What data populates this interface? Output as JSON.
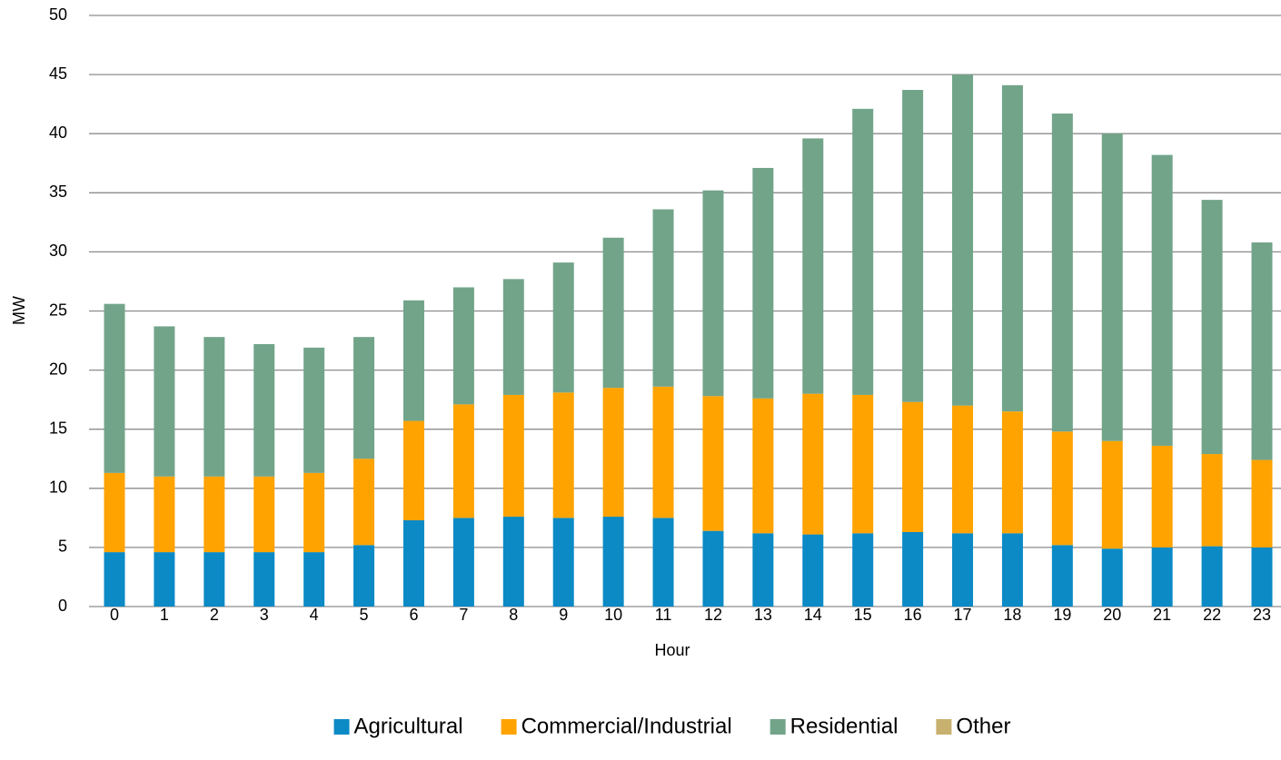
{
  "chart_data": {
    "type": "bar",
    "stacked": true,
    "x_label": "Hour",
    "y_label": "MW",
    "categories": [
      "0",
      "1",
      "2",
      "3",
      "4",
      "5",
      "6",
      "7",
      "8",
      "9",
      "10",
      "11",
      "12",
      "13",
      "14",
      "15",
      "16",
      "17",
      "18",
      "19",
      "20",
      "21",
      "22",
      "23"
    ],
    "series": [
      {
        "name": "Agricultural",
        "color": "#0b8ac5",
        "values": [
          4.6,
          4.6,
          4.6,
          4.6,
          4.6,
          5.2,
          7.3,
          7.5,
          7.6,
          7.5,
          7.6,
          7.5,
          6.4,
          6.2,
          6.1,
          6.2,
          6.3,
          6.2,
          6.2,
          5.2,
          4.9,
          5.0,
          5.1,
          5.0
        ]
      },
      {
        "name": "Commercial/Industrial",
        "color": "#ffa300",
        "values": [
          6.7,
          6.4,
          6.4,
          6.4,
          6.7,
          7.3,
          8.4,
          9.6,
          10.3,
          10.6,
          10.9,
          11.1,
          11.4,
          11.4,
          11.9,
          11.7,
          11.0,
          10.8,
          10.3,
          9.6,
          9.1,
          8.6,
          7.8,
          7.4
        ]
      },
      {
        "name": "Residential",
        "color": "#72a48a",
        "values": [
          14.3,
          12.7,
          11.8,
          11.2,
          10.6,
          10.3,
          10.2,
          9.9,
          9.8,
          11.0,
          12.7,
          15.0,
          17.4,
          19.5,
          21.6,
          24.2,
          26.4,
          28.0,
          27.6,
          26.9,
          26.0,
          24.6,
          21.5,
          18.4
        ]
      },
      {
        "name": "Other",
        "color": "#c8b06e",
        "values": [
          0,
          0,
          0,
          0,
          0,
          0,
          0,
          0,
          0,
          0,
          0,
          0,
          0,
          0,
          0,
          0,
          0,
          0,
          0,
          0,
          0,
          0,
          0,
          0
        ]
      }
    ],
    "ylim": [
      0,
      50
    ],
    "yticks": [
      0,
      5,
      10,
      15,
      20,
      25,
      30,
      35,
      40,
      45,
      50
    ],
    "grid": true,
    "legend": "bottom"
  }
}
